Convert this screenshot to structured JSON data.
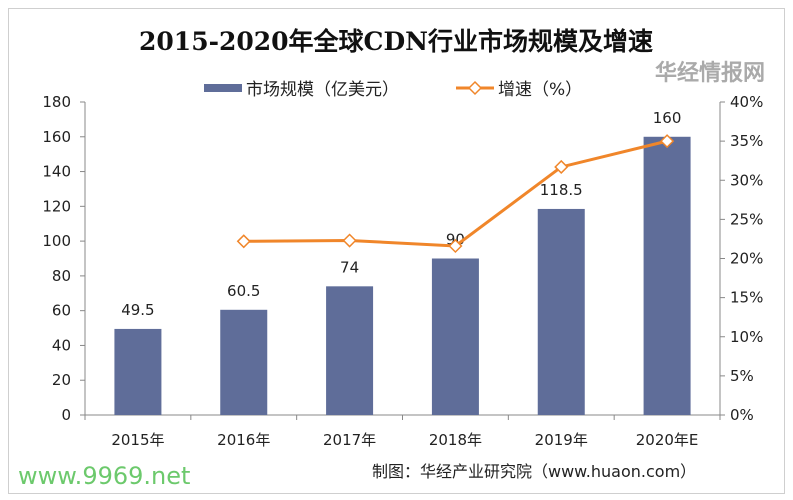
{
  "chart_data": {
    "type": "bar+line",
    "title": "2015-2020年全球CDN行业市场规模及增速",
    "categories": [
      "2015年",
      "2016年",
      "2017年",
      "2018年",
      "2019年",
      "2020年E"
    ],
    "series": [
      {
        "name": "市场规模（亿美元）",
        "type": "bar",
        "axis": "left",
        "color": "#5f6d99",
        "values": [
          49.5,
          60.5,
          74,
          90,
          118.5,
          160
        ],
        "labels": [
          "49.5",
          "60.5",
          "74",
          "90",
          "118.5",
          "160"
        ]
      },
      {
        "name": "增速（%）",
        "type": "line",
        "axis": "right",
        "color": "#f0862a",
        "marker": "diamond-open",
        "values": [
          null,
          22.2,
          22.3,
          21.6,
          31.7,
          35.0
        ]
      }
    ],
    "y_left": {
      "min": 0,
      "max": 180,
      "ticks": [
        "0",
        "20",
        "40",
        "60",
        "80",
        "100",
        "120",
        "140",
        "160",
        "180"
      ]
    },
    "y_right": {
      "min": 0,
      "max": 40,
      "ticks": [
        "0%",
        "5%",
        "10%",
        "15%",
        "20%",
        "25%",
        "30%",
        "35%",
        "40%"
      ]
    },
    "grid": false,
    "legend": "top",
    "source": "制图：华经产业研究院（www.huaon.com）"
  },
  "watermarks": {
    "logo": "华经情报网",
    "logo_sub": "huaon.com",
    "site": "www.9969.net"
  }
}
